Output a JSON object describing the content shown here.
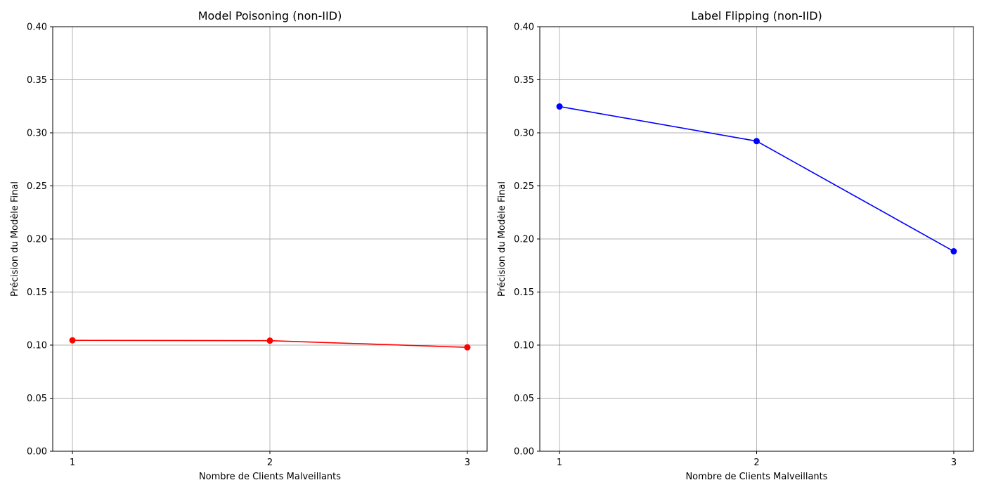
{
  "chart_data": [
    {
      "type": "line",
      "title": "Model Poisoning (non-IID)",
      "xlabel": "Nombre de Clients Malveillants",
      "ylabel": "Précision du Modèle Final",
      "x": [
        1,
        2,
        3
      ],
      "xticks": [
        "1",
        "2",
        "3"
      ],
      "xlim": [
        0.9,
        3.1
      ],
      "ylim": [
        0.0,
        0.4
      ],
      "yticks": [
        "0.00",
        "0.05",
        "0.10",
        "0.15",
        "0.20",
        "0.25",
        "0.30",
        "0.35",
        "0.40"
      ],
      "grid": true,
      "series": [
        {
          "values": [
            0.1045,
            0.1042,
            0.0979
          ],
          "color": "#ff0000",
          "marker": "circle"
        }
      ]
    },
    {
      "type": "line",
      "title": "Label Flipping (non-IID)",
      "xlabel": "Nombre de Clients Malveillants",
      "ylabel": "Précision du Modèle Final",
      "x": [
        1,
        2,
        3
      ],
      "xticks": [
        "1",
        "2",
        "3"
      ],
      "xlim": [
        0.9,
        3.1
      ],
      "ylim": [
        0.0,
        0.4
      ],
      "yticks": [
        "0.00",
        "0.05",
        "0.10",
        "0.15",
        "0.20",
        "0.25",
        "0.30",
        "0.35",
        "0.40"
      ],
      "grid": true,
      "series": [
        {
          "values": [
            0.3248,
            0.2922,
            0.1884
          ],
          "color": "#0000ff",
          "marker": "circle"
        }
      ]
    }
  ]
}
